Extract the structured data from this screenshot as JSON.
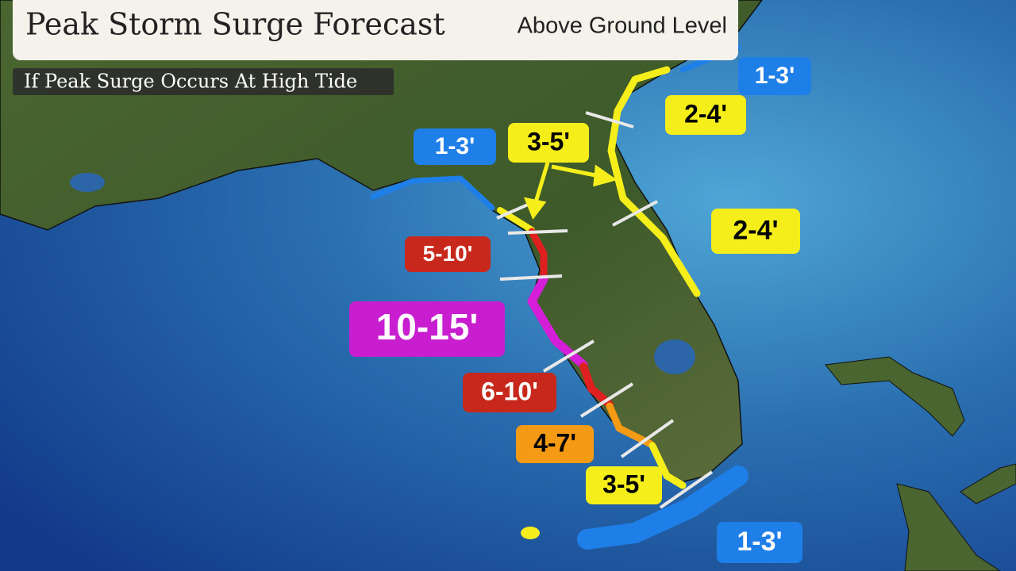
{
  "header": {
    "title": "Peak Storm Surge Forecast",
    "subtitle": "Above Ground Level",
    "note": "If Peak Surge Occurs At High Tide"
  },
  "labels": [
    {
      "text": "1-3'",
      "color": "#1f7fe8",
      "text_color": "#ffffff"
    },
    {
      "text": "2-4'",
      "color": "#f5ee1a",
      "text_color": "#000000"
    },
    {
      "text": "1-3'",
      "color": "#1f7fe8",
      "text_color": "#ffffff"
    },
    {
      "text": "3-5'",
      "color": "#f5ee1a",
      "text_color": "#000000"
    },
    {
      "text": "2-4'",
      "color": "#f5ee1a",
      "text_color": "#000000"
    },
    {
      "text": "5-10'",
      "color": "#c8281c",
      "text_color": "#ffffff"
    },
    {
      "text": "10-15'",
      "color": "#c81ed0",
      "text_color": "#ffffff"
    },
    {
      "text": "6-10'",
      "color": "#c8281c",
      "text_color": "#ffffff"
    },
    {
      "text": "4-7'",
      "color": "#f59a14",
      "text_color": "#000000"
    },
    {
      "text": "3-5'",
      "color": "#f5ee1a",
      "text_color": "#000000"
    },
    {
      "text": "1-3'",
      "color": "#1f7fe8",
      "text_color": "#ffffff"
    }
  ]
}
